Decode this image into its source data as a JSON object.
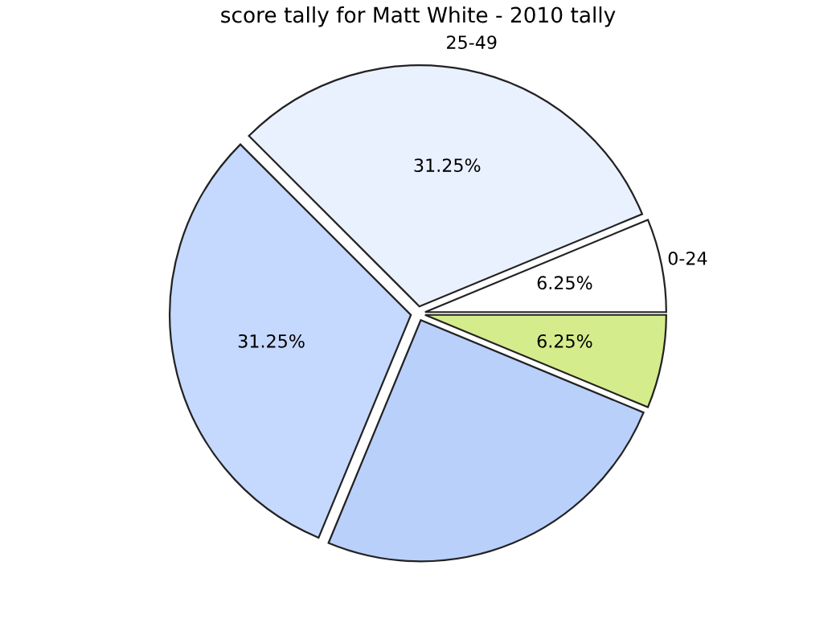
{
  "chart_data": {
    "type": "pie",
    "title": "score tally for Matt White - 2010 tally",
    "categories": [
      "25-49",
      "0-24",
      null,
      null,
      null
    ],
    "values": [
      31.25,
      6.25,
      6.25,
      25,
      31.25
    ],
    "colors": [
      "#eaf1fe",
      "#ffffff",
      "#d4ec8c",
      "#b9d0fb",
      "#c5d8fd"
    ],
    "value_labels": [
      "31.25%",
      "6.25%",
      "6.25%",
      null,
      "31.25%"
    ],
    "legend": false
  }
}
